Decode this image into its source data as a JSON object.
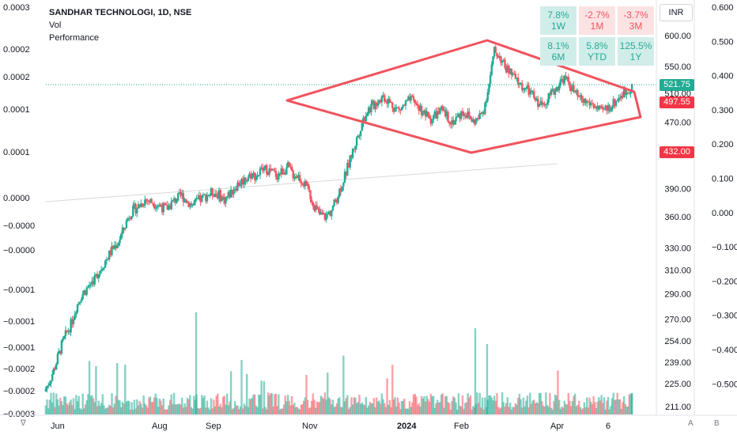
{
  "chart_data": {
    "type": "candlestick",
    "legend": {
      "symbol": "SANDHAR TECHNOLOGI, 1D, NSE",
      "indicators": [
        "Vol",
        "Performance"
      ]
    },
    "currency": "INR",
    "price_axis": {
      "labels": [
        "600.00",
        "550.00",
        "510.00",
        "470.00",
        "390.00",
        "360.00",
        "330.00",
        "310.00",
        "290.00",
        "270.00",
        "254.00",
        "239.00",
        "225.00",
        "211.00"
      ],
      "range": [
        205,
        625
      ],
      "scale": "log"
    },
    "right_axis": {
      "labels": [
        "0.600",
        "0.500",
        "0.400",
        "0.300",
        "0.200",
        "0.100",
        "0.000",
        "−0.100",
        "−0.200",
        "−0.300",
        "−0.400",
        "−0.500"
      ],
      "range": [
        -0.58,
        0.62
      ]
    },
    "left_axis": {
      "labels": [
        "0.0003",
        "0.0002",
        "0.0002",
        "0.0001",
        "0.0001",
        "0.0000",
        "−0.0000",
        "−0.0000",
        "−0.0001",
        "−0.0001",
        "−0.0001",
        "−0.0002",
        "−0.0002",
        "−0.0003"
      ]
    },
    "x_ticks": [
      "Jun",
      "Aug",
      "Sep",
      "Nov",
      "2024",
      "Feb",
      "Apr",
      "6"
    ],
    "price_tags": {
      "last": "521.75",
      "high_line": "497.55",
      "low_line": "432.00"
    },
    "series": [
      {
        "name": "price",
        "color_up": "#22ab94",
        "color_down": "#f7525f",
        "close": [
          227,
          236,
          248,
          258,
          266,
          279,
          289,
          294,
          300,
          306,
          314,
          322,
          330,
          336,
          348,
          362,
          368,
          372,
          378,
          376,
          374,
          371,
          368,
          374,
          379,
          382,
          376,
          372,
          376,
          380,
          384,
          386,
          383,
          378,
          384,
          392,
          397,
          401,
          406,
          404,
          410,
          412,
          408,
          405,
          410,
          414,
          406,
          404,
          396,
          385,
          372,
          362,
          360,
          365,
          376,
          392,
          408,
          428,
          448,
          470,
          486,
          492,
          500,
          506,
          499,
          491,
          486,
          493,
          500,
          497,
          488,
          480,
          474,
          481,
          485,
          478,
          471,
          476,
          485,
          479,
          471,
          474,
          488,
          523,
          574,
          566,
          549,
          541,
          530,
          521,
          516,
          509,
          498,
          493,
          504,
          510,
          521,
          532,
          526,
          512,
          502,
          498,
          496,
          492,
          483,
          488,
          492,
          500,
          508,
          512,
          522
        ]
      },
      {
        "name": "Vol"
      }
    ],
    "pattern": {
      "type": "diamond",
      "color": "#f0535e"
    }
  },
  "performance": [
    {
      "value": "7.8%",
      "period": "1W",
      "tone": "pos"
    },
    {
      "value": "-2.7%",
      "period": "1M",
      "tone": "neg"
    },
    {
      "value": "-3.7%",
      "period": "3M",
      "tone": "neg"
    },
    {
      "value": "8.1%",
      "period": "6M",
      "tone": "pos"
    },
    {
      "value": "5.8%",
      "period": "YTD",
      "tone": "pos"
    },
    {
      "value": "125.5%",
      "period": "1Y",
      "tone": "pos"
    }
  ],
  "footer": {
    "tz_icon": "∇",
    "a": "A",
    "b": "B"
  }
}
